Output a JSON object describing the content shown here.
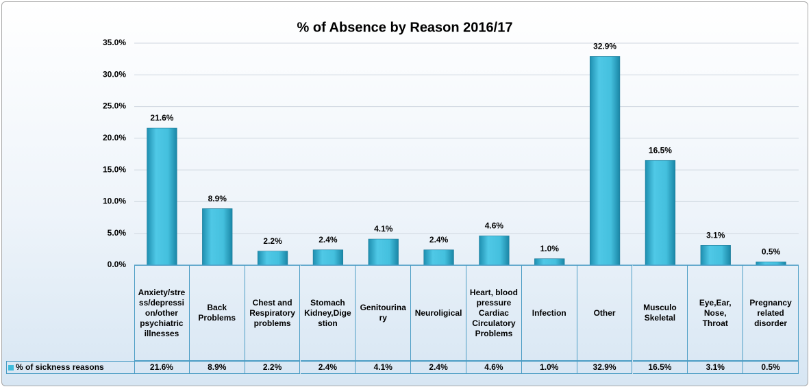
{
  "chart_data": {
    "type": "bar",
    "title": "% of Absence by Reason 2016/17",
    "categories": [
      "Anxiety/stress/depression/other psychiatric illnesses",
      "Back Problems",
      "Chest and Respiratory problems",
      "Stomach Kidney,Digestion",
      "Genitourinary",
      "Neuroligical",
      "Heart, blood pressure Cardiac Circulatory Problems",
      "Infection",
      "Other",
      "Musculo Skeletal",
      "Eye,Ear, Nose, Throat",
      "Pregnancy related disorder"
    ],
    "series": [
      {
        "name": "% of sickness reasons",
        "color": "#3fbcdc",
        "values": [
          21.6,
          8.9,
          2.2,
          2.4,
          4.1,
          2.4,
          4.6,
          1.0,
          32.9,
          16.5,
          3.1,
          0.5
        ],
        "value_labels": [
          "21.6%",
          "8.9%",
          "2.2%",
          "2.4%",
          "4.1%",
          "2.4%",
          "4.6%",
          "1.0%",
          "32.9%",
          "16.5%",
          "3.1%",
          "0.5%"
        ]
      }
    ],
    "ylim": [
      0,
      35
    ],
    "yticks": [
      {
        "value": 0,
        "label": "0.0%"
      },
      {
        "value": 5,
        "label": "5.0%"
      },
      {
        "value": 10,
        "label": "10.0%"
      },
      {
        "value": 15,
        "label": "15.0%"
      },
      {
        "value": 20,
        "label": "20.0%"
      },
      {
        "value": 25,
        "label": "25.0%"
      },
      {
        "value": 30,
        "label": "30.0%"
      },
      {
        "value": 35,
        "label": "35.0%"
      }
    ],
    "grid": true,
    "data_table": true
  }
}
